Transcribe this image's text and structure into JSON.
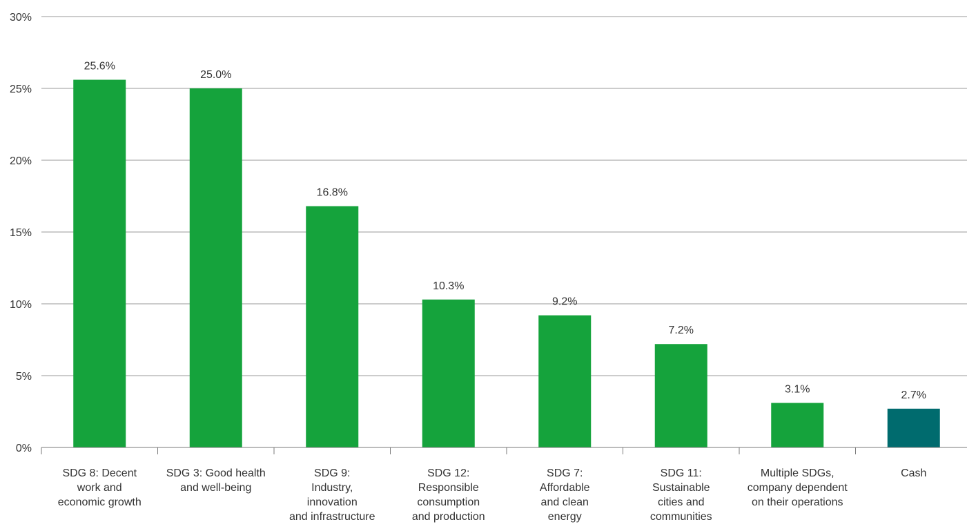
{
  "chart_data": {
    "type": "bar",
    "title": "",
    "xlabel": "",
    "ylabel": "",
    "ylim": [
      0,
      30
    ],
    "yticks": [
      0,
      5,
      10,
      15,
      20,
      25,
      30
    ],
    "ytick_labels": [
      "0%",
      "5%",
      "10%",
      "15%",
      "20%",
      "25%",
      "30%"
    ],
    "grid": true,
    "categories": [
      [
        "SDG 8: Decent",
        "work and",
        "economic growth"
      ],
      [
        "SDG 3: Good health",
        "and well-being"
      ],
      [
        "SDG 9:",
        "Industry,",
        "innovation",
        "and infrastructure"
      ],
      [
        "SDG 12:",
        "Responsible",
        "consumption",
        "and production"
      ],
      [
        "SDG 7:",
        "Affordable",
        "and clean",
        "energy"
      ],
      [
        "SDG 11:",
        "Sustainable",
        "cities and",
        "communities"
      ],
      [
        "Multiple SDGs,",
        "company dependent",
        "on their operations"
      ],
      [
        "Cash"
      ]
    ],
    "values": [
      25.6,
      25.0,
      16.8,
      10.3,
      9.2,
      7.2,
      3.1,
      2.7
    ],
    "value_labels": [
      "25.6%",
      "25.0%",
      "16.8%",
      "10.3%",
      "9.2%",
      "7.2%",
      "3.1%",
      "2.7%"
    ],
    "colors": [
      "#15a33c",
      "#15a33c",
      "#15a33c",
      "#15a33c",
      "#15a33c",
      "#15a33c",
      "#15a33c",
      "#006b6e"
    ]
  },
  "style": {
    "grid_color": "#9a9a9a",
    "axis_color": "#7a7a7a",
    "text_color": "#333333"
  }
}
